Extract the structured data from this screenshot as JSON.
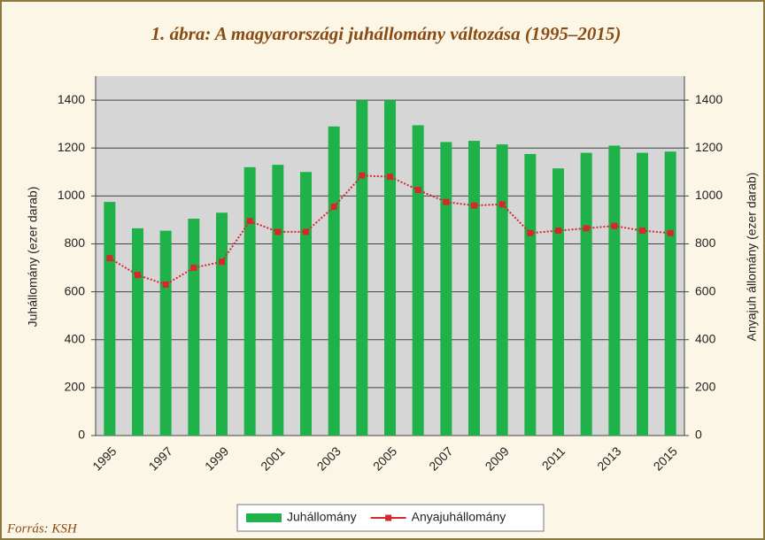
{
  "chart_data": {
    "type": "bar_line",
    "title": "1. ábra: A magyarországi juhállomány változása (1995–2015)",
    "ylabel": "Juhállomány (ezer darab)",
    "y2label": "Anyajuh állomány (ezer darab)",
    "source": "Forrás: KSH",
    "categories": [
      "1995",
      null,
      "1997",
      null,
      "1999",
      null,
      "2001",
      null,
      "2003",
      null,
      "2005",
      null,
      "2007",
      null,
      "2009",
      null,
      "2011",
      null,
      "2013",
      null,
      "2015"
    ],
    "series": [
      {
        "name": "Juhállomány",
        "color": "#1fb14a",
        "kind": "bar",
        "values": [
          975,
          865,
          855,
          905,
          930,
          1120,
          1130,
          1100,
          1290,
          1400,
          1400,
          1295,
          1225,
          1230,
          1215,
          1175,
          1115,
          1180,
          1210,
          1180,
          1185
        ]
      },
      {
        "name": "Anyajuhállomány",
        "color": "#d9262b",
        "kind": "line",
        "axis": "y2",
        "values": [
          740,
          670,
          630,
          700,
          725,
          895,
          850,
          850,
          955,
          1085,
          1080,
          1025,
          975,
          960,
          965,
          845,
          855,
          865,
          875,
          855,
          845
        ]
      }
    ],
    "ylim": [
      0,
      1500
    ],
    "yticks": [
      0,
      200,
      400,
      600,
      800,
      1000,
      1200,
      1400
    ],
    "y2lim": [
      0,
      1500
    ],
    "y2ticks": [
      0,
      200,
      400,
      600,
      800,
      1000,
      1200,
      1400
    ],
    "grid": true,
    "legend": "bottom"
  }
}
